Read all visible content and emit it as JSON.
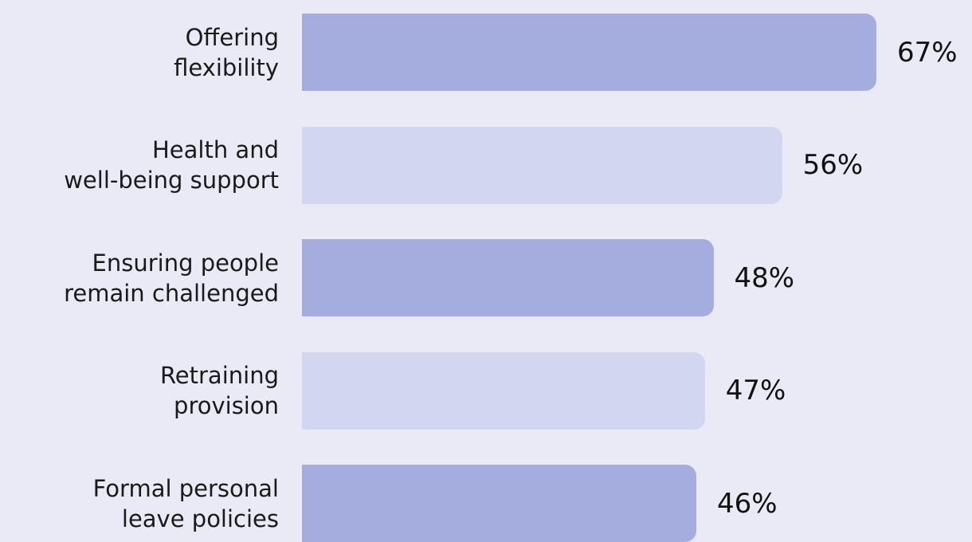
{
  "chart_data": {
    "type": "bar",
    "orientation": "horizontal",
    "categories": [
      "Offering\nflexibility",
      "Health and\nwell-being support",
      "Ensuring people\nremain challenged",
      "Retraining\nprovision",
      "Formal personal\nleave policies"
    ],
    "values": [
      67,
      56,
      48,
      47,
      46
    ],
    "value_labels": [
      "67%",
      "56%",
      "48%",
      "47%",
      "46%"
    ],
    "colors": [
      "#a5addf",
      "#d3d6f0",
      "#a5addf",
      "#d3d6f0",
      "#a5addf"
    ]
  }
}
